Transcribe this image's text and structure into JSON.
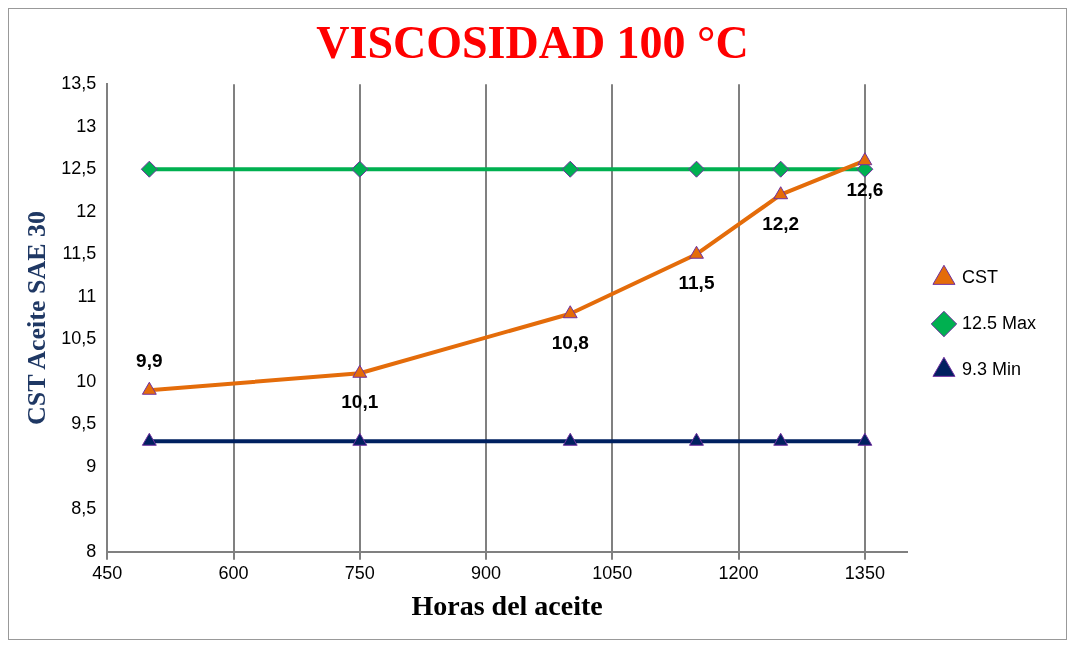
{
  "chart_data": {
    "type": "line",
    "title": "VISCOSIDAD 100 °C",
    "xlabel": "Horas del aceite",
    "ylabel": "CST Aceite SAE 30",
    "x": [
      500,
      750,
      1000,
      1150,
      1250,
      1350
    ],
    "series": [
      {
        "name": "CST",
        "color": "#e46c0a",
        "marker": "triangle",
        "values": [
          9.9,
          10.1,
          10.8,
          11.5,
          12.2,
          12.6
        ],
        "value_labels": [
          "9,9",
          "10,1",
          "10,8",
          "11,5",
          "12,2",
          "12,6"
        ]
      },
      {
        "name": "12.5 Max",
        "color": "#00b050",
        "marker": "diamond",
        "values": [
          12.5,
          12.5,
          12.5,
          12.5,
          12.5,
          12.5
        ]
      },
      {
        "name": "9.3 Min",
        "color": "#002060",
        "marker": "triangle",
        "values": [
          9.3,
          9.3,
          9.3,
          9.3,
          9.3,
          9.3
        ]
      }
    ],
    "xlim": [
      450,
      1400
    ],
    "xticks": [
      450,
      600,
      750,
      900,
      1050,
      1200,
      1350
    ],
    "ylim": [
      8,
      13.5
    ],
    "yticks": [
      8,
      {
        "value": 8.5,
        "label": "8,5"
      },
      9,
      {
        "value": 9.5,
        "label": "9,5"
      },
      10,
      {
        "value": 10.5,
        "label": "10,5"
      },
      11,
      {
        "value": 11.5,
        "label": "11,5"
      },
      12,
      {
        "value": 12.5,
        "label": "12,5"
      },
      13,
      {
        "value": 13.5,
        "label": "13,5"
      }
    ],
    "grid": "x",
    "legend": "right",
    "line_style": "solid"
  }
}
